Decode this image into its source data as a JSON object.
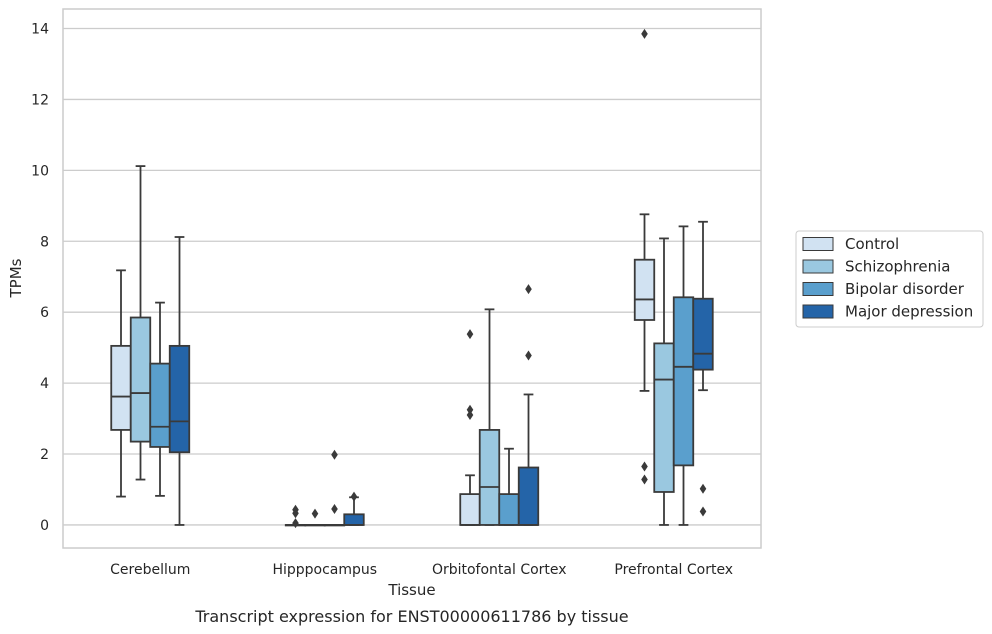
{
  "chart_data": {
    "type": "box",
    "xlabel": "Tissue",
    "ylabel": "TPMs",
    "caption": "Transcript expression for ENST00000611786 by tissue",
    "ylim": [
      -0.65,
      14.55
    ],
    "yticks": [
      0,
      2,
      4,
      6,
      8,
      10,
      12,
      14
    ],
    "grid": "horizontal",
    "legend_placement": "right",
    "categories": [
      "Cerebellum",
      "Hipppocampus",
      "Orbitofontal Cortex",
      "Prefrontal Cortex"
    ],
    "series": [
      {
        "name": "Control",
        "color": "#d1e2f2",
        "boxes": [
          {
            "whisker_low": 0.8,
            "q1": 2.68,
            "median": 3.62,
            "q3": 5.05,
            "whisker_high": 7.18,
            "outliers": []
          },
          {
            "whisker_low": 0.0,
            "q1": 0.0,
            "median": 0.0,
            "q3": 0.0,
            "whisker_high": 0.0,
            "outliers": [
              0.05,
              0.33,
              0.43
            ]
          },
          {
            "whisker_low": 0.0,
            "q1": 0.0,
            "median": 0.0,
            "q3": 0.87,
            "whisker_high": 1.4,
            "outliers": [
              3.1,
              3.25,
              5.38
            ]
          },
          {
            "whisker_low": 3.78,
            "q1": 5.78,
            "median": 6.36,
            "q3": 7.48,
            "whisker_high": 8.76,
            "outliers": [
              1.28,
              1.65,
              13.85
            ]
          }
        ]
      },
      {
        "name": "Schizophrenia",
        "color": "#9ac8e0",
        "boxes": [
          {
            "whisker_low": 1.28,
            "q1": 2.35,
            "median": 3.72,
            "q3": 5.85,
            "whisker_high": 10.12,
            "outliers": []
          },
          {
            "whisker_low": 0.0,
            "q1": 0.0,
            "median": 0.0,
            "q3": 0.0,
            "whisker_high": 0.0,
            "outliers": [
              0.32
            ]
          },
          {
            "whisker_low": 0.0,
            "q1": 0.0,
            "median": 1.07,
            "q3": 2.68,
            "whisker_high": 6.08,
            "outliers": []
          },
          {
            "whisker_low": 0.0,
            "q1": 0.93,
            "median": 4.1,
            "q3": 5.12,
            "whisker_high": 8.08,
            "outliers": []
          }
        ]
      },
      {
        "name": "Bipolar disorder",
        "color": "#5a9fcd",
        "boxes": [
          {
            "whisker_low": 0.82,
            "q1": 2.2,
            "median": 2.77,
            "q3": 4.55,
            "whisker_high": 6.27,
            "outliers": []
          },
          {
            "whisker_low": 0.0,
            "q1": 0.0,
            "median": 0.0,
            "q3": 0.0,
            "whisker_high": 0.0,
            "outliers": [
              0.45,
              1.98
            ]
          },
          {
            "whisker_low": 0.0,
            "q1": 0.0,
            "median": 0.0,
            "q3": 0.87,
            "whisker_high": 2.15,
            "outliers": []
          },
          {
            "whisker_low": 0.0,
            "q1": 1.68,
            "median": 4.46,
            "q3": 6.42,
            "whisker_high": 8.42,
            "outliers": []
          }
        ]
      },
      {
        "name": "Major depression",
        "color": "#2464a8",
        "boxes": [
          {
            "whisker_low": 0.0,
            "q1": 2.05,
            "median": 2.92,
            "q3": 5.05,
            "whisker_high": 8.12,
            "outliers": []
          },
          {
            "whisker_low": 0.0,
            "q1": 0.0,
            "median": 0.0,
            "q3": 0.3,
            "whisker_high": 0.78,
            "outliers": [
              0.8
            ]
          },
          {
            "whisker_low": 0.0,
            "q1": 0.0,
            "median": 0.0,
            "q3": 1.62,
            "whisker_high": 3.68,
            "outliers": [
              4.78,
              6.65
            ]
          },
          {
            "whisker_low": 3.8,
            "q1": 4.38,
            "median": 4.83,
            "q3": 6.38,
            "whisker_high": 8.55,
            "outliers": [
              0.38,
              1.02
            ]
          }
        ]
      }
    ]
  }
}
